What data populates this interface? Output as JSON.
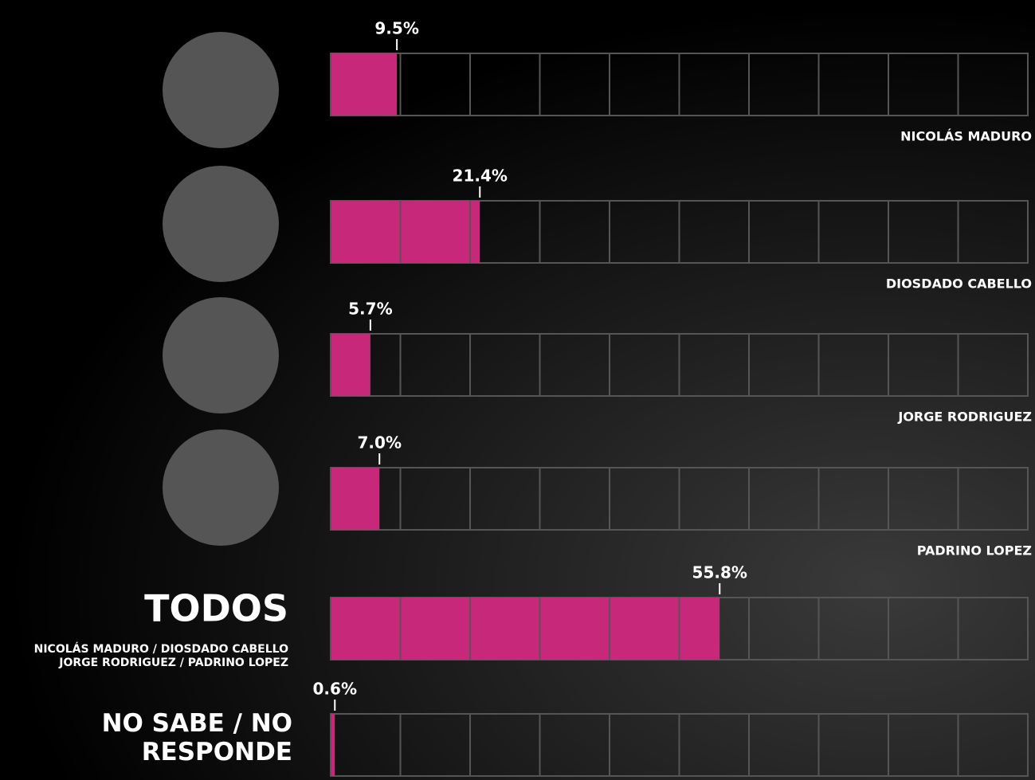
{
  "chart_data": {
    "type": "bar",
    "orientation": "horizontal",
    "categories": [
      "NICOLÁS MADURO",
      "DIOSDADO CABELLO",
      "JORGE RODRIGUEZ",
      "PADRINO LOPEZ",
      "TODOS",
      "NO SABE / NO RESPONDE"
    ],
    "todos_members": [
      "NICOLÁS MADURO / DIOSDADO CABELLO",
      "JORGE RODRIGUEZ / PADRINO LOPEZ"
    ],
    "values": [
      9.5,
      21.4,
      5.7,
      7.0,
      55.8,
      0.6
    ],
    "value_labels": [
      "9.5%",
      "21.4%",
      "5.7%",
      "7.0%",
      "55.8%",
      "0.6%"
    ],
    "color": "#c8287a",
    "xlim": [
      0,
      100
    ],
    "xticks": [
      0,
      10,
      20,
      30,
      40,
      50,
      60,
      70,
      80,
      90,
      100
    ]
  }
}
